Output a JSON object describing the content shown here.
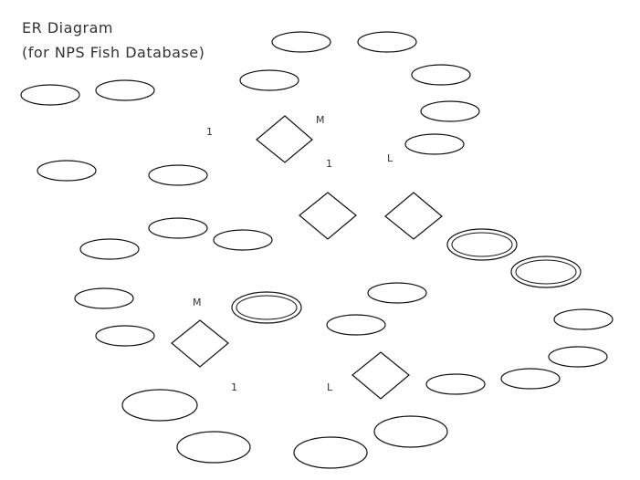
{
  "title": {
    "line1": "ER Diagram",
    "line2": "(for NPS Fish Database)"
  },
  "cardinality_marks": [
    {
      "id": "c1",
      "text": "1"
    },
    {
      "id": "c2",
      "text": "M"
    },
    {
      "id": "c3",
      "text": "1"
    },
    {
      "id": "c4",
      "text": "L"
    },
    {
      "id": "c5",
      "text": "M"
    },
    {
      "id": "c6",
      "text": "1"
    },
    {
      "id": "c7",
      "text": "L"
    }
  ]
}
